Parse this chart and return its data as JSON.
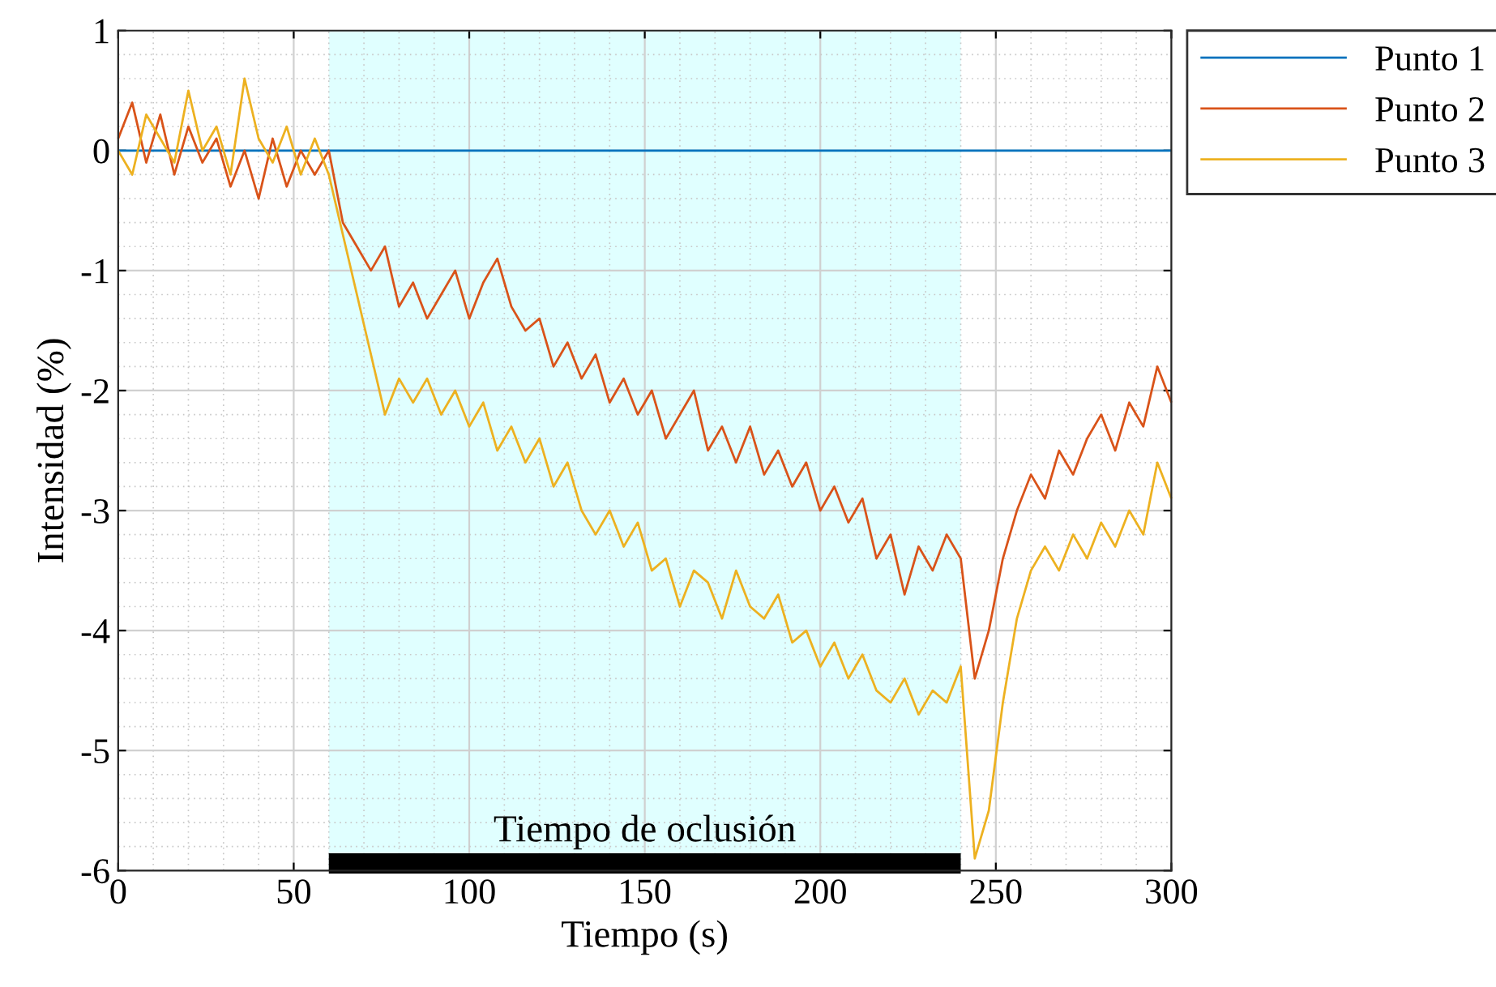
{
  "chart_data": {
    "type": "line",
    "xlabel": "Tiempo (s)",
    "ylabel": "Intensidad (%)",
    "xlim": [
      0,
      300
    ],
    "ylim": [
      -6,
      1
    ],
    "xticks": [
      0,
      50,
      100,
      150,
      200,
      250,
      300
    ],
    "yticks": [
      -6,
      -5,
      -4,
      -3,
      -2,
      -1,
      0,
      1
    ],
    "grid": true,
    "legend": "top right",
    "bands": [
      {
        "axis": "x",
        "from": 60,
        "to": 240,
        "color": "#e0ffff"
      }
    ],
    "annotations": [
      "Tiempo de oclusión"
    ],
    "x": [
      0,
      4,
      8,
      12,
      16,
      20,
      24,
      28,
      32,
      36,
      40,
      44,
      48,
      52,
      56,
      60,
      64,
      68,
      72,
      76,
      80,
      84,
      88,
      92,
      96,
      100,
      104,
      108,
      112,
      116,
      120,
      124,
      128,
      132,
      136,
      140,
      144,
      148,
      152,
      156,
      160,
      164,
      168,
      172,
      176,
      180,
      184,
      188,
      192,
      196,
      200,
      204,
      208,
      212,
      216,
      220,
      224,
      228,
      232,
      236,
      240,
      244,
      248,
      252,
      256,
      260,
      264,
      268,
      272,
      276,
      280,
      284,
      288,
      292,
      296,
      300
    ],
    "series": [
      {
        "name": "Punto 1",
        "color": "#0072bd",
        "x": [
          0,
          300
        ],
        "values": [
          0,
          0
        ]
      },
      {
        "name": "Punto 2",
        "color": "#d95319",
        "values": [
          0.1,
          0.4,
          -0.1,
          0.3,
          -0.2,
          0.2,
          -0.1,
          0.1,
          -0.3,
          0.0,
          -0.4,
          0.1,
          -0.3,
          0.0,
          -0.2,
          0.0,
          -0.6,
          -0.8,
          -1.0,
          -0.8,
          -1.3,
          -1.1,
          -1.4,
          -1.2,
          -1.0,
          -1.4,
          -1.1,
          -0.9,
          -1.3,
          -1.5,
          -1.4,
          -1.8,
          -1.6,
          -1.9,
          -1.7,
          -2.1,
          -1.9,
          -2.2,
          -2.0,
          -2.4,
          -2.2,
          -2.0,
          -2.5,
          -2.3,
          -2.6,
          -2.3,
          -2.7,
          -2.5,
          -2.8,
          -2.6,
          -3.0,
          -2.8,
          -3.1,
          -2.9,
          -3.4,
          -3.2,
          -3.7,
          -3.3,
          -3.5,
          -3.2,
          -3.4,
          -4.4,
          -4.0,
          -3.4,
          -3.0,
          -2.7,
          -2.9,
          -2.5,
          -2.7,
          -2.4,
          -2.2,
          -2.5,
          -2.1,
          -2.3,
          -1.8,
          -2.1
        ]
      },
      {
        "name": "Punto 3",
        "color": "#edb120",
        "values": [
          0.0,
          -0.2,
          0.3,
          0.1,
          -0.1,
          0.5,
          0.0,
          0.2,
          -0.2,
          0.6,
          0.1,
          -0.1,
          0.2,
          -0.2,
          0.1,
          -0.2,
          -0.7,
          -1.2,
          -1.7,
          -2.2,
          -1.9,
          -2.1,
          -1.9,
          -2.2,
          -2.0,
          -2.3,
          -2.1,
          -2.5,
          -2.3,
          -2.6,
          -2.4,
          -2.8,
          -2.6,
          -3.0,
          -3.2,
          -3.0,
          -3.3,
          -3.1,
          -3.5,
          -3.4,
          -3.8,
          -3.5,
          -3.6,
          -3.9,
          -3.5,
          -3.8,
          -3.9,
          -3.7,
          -4.1,
          -4.0,
          -4.3,
          -4.1,
          -4.4,
          -4.2,
          -4.5,
          -4.6,
          -4.4,
          -4.7,
          -4.5,
          -4.6,
          -4.3,
          -5.9,
          -5.5,
          -4.6,
          -3.9,
          -3.5,
          -3.3,
          -3.5,
          -3.2,
          -3.4,
          -3.1,
          -3.3,
          -3.0,
          -3.2,
          -2.6,
          -2.9
        ]
      },
      {
        "color": "#000000",
        "x": [
          60,
          240
        ],
        "values": [
          -5.94,
          -5.94
        ]
      }
    ]
  }
}
